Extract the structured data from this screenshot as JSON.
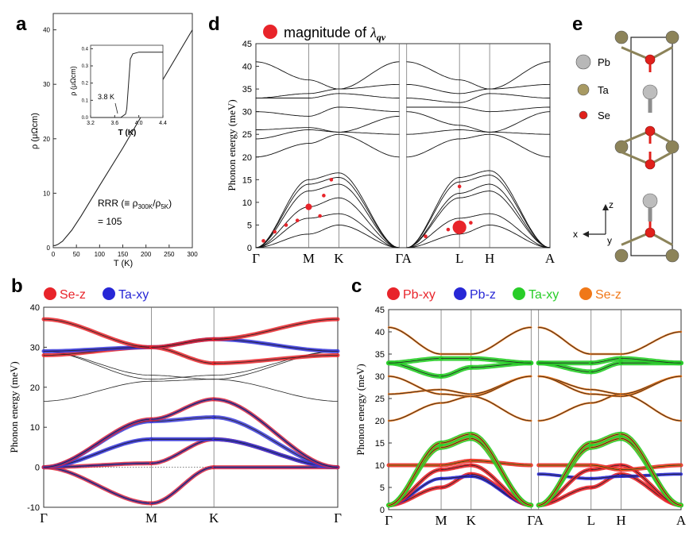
{
  "panels": {
    "a": {
      "letter": "a",
      "chart_data": {
        "type": "line",
        "xlabel": "T (K)",
        "ylabel": "ρ (μΩcm)",
        "xlim": [
          0,
          300
        ],
        "ylim": [
          0,
          43
        ],
        "xticks": [
          "0",
          "50",
          "100",
          "150",
          "200",
          "250",
          "300"
        ],
        "yticks": [
          "0",
          "10",
          "20",
          "30",
          "40"
        ],
        "x": [
          0,
          4,
          10,
          20,
          40,
          60,
          100,
          150,
          200,
          250,
          300
        ],
        "y": [
          0.4,
          0.4,
          0.6,
          1.2,
          3.2,
          5.8,
          11.4,
          18.3,
          25.6,
          32.8,
          40.0
        ],
        "annotation_line1": "RRR (≡ ρ",
        "annotation_sub1": "300K",
        "annotation_mid": "/ρ",
        "annotation_sub2": "5K",
        "annotation_end": ")",
        "annotation_line2": "= 105",
        "inset": {
          "xlabel": "T (K)",
          "ylabel": "ρ (μΩcm)",
          "xlim": [
            3.2,
            4.4
          ],
          "ylim": [
            0,
            0.42
          ],
          "xticks": [
            "3.2",
            "3.6",
            "4.0",
            "4.4"
          ],
          "yticks": [
            "0.0",
            "0.1",
            "0.2",
            "0.3",
            "0.4"
          ],
          "x": [
            3.2,
            3.7,
            3.78,
            3.8,
            3.86,
            3.9,
            4.0,
            4.4
          ],
          "y": [
            0.0,
            0.0,
            0.02,
            0.05,
            0.34,
            0.37,
            0.38,
            0.38
          ],
          "label": "3.8 K"
        }
      }
    },
    "d": {
      "letter": "d",
      "legend": "magnitude of ",
      "legend_symbol": "λ",
      "legend_sub": "qv",
      "chart_data": {
        "type": "line",
        "ylabel": "Phonon energy (meV)",
        "ylim": [
          0,
          45
        ],
        "yticks": [
          "0",
          "5",
          "10",
          "15",
          "20",
          "25",
          "30",
          "35",
          "40",
          "45"
        ],
        "xticks": [
          "Γ",
          "M",
          "K",
          "Γ",
          "A",
          "L",
          "H",
          "A"
        ],
        "xtick_positions": [
          0,
          0.7,
          1.1,
          1.9,
          2.0,
          2.7,
          3.1,
          3.9
        ],
        "segments": [
          [
            0,
            1
          ],
          [
            1,
            2
          ],
          [
            2,
            3
          ],
          [
            4,
            5
          ],
          [
            5,
            6
          ],
          [
            6,
            7
          ]
        ],
        "bands": [
          [
            0,
            3.0,
            5.0,
            0,
            0,
            3.0,
            5.0,
            0
          ],
          [
            0,
            6.5,
            7.5,
            0,
            0,
            6.5,
            7.5,
            0
          ],
          [
            0,
            9.0,
            11.0,
            0,
            0,
            11.0,
            12.5,
            0
          ],
          [
            0,
            12.5,
            14.0,
            0,
            0,
            12.0,
            14.0,
            0
          ],
          [
            0,
            14.0,
            15.5,
            0,
            0,
            14.5,
            16.0,
            0
          ],
          [
            0,
            15.0,
            16.5,
            0,
            0,
            15.5,
            17.0,
            0
          ],
          [
            20,
            23,
            25,
            20,
            20,
            24,
            25,
            20
          ],
          [
            24,
            26,
            25.5,
            25,
            25,
            26,
            25.5,
            25
          ],
          [
            26,
            26.5,
            25.5,
            29,
            30,
            27,
            25.5,
            30
          ],
          [
            30,
            29,
            31,
            30,
            31,
            31,
            30,
            31
          ],
          [
            33,
            33,
            34,
            33,
            33,
            32,
            34,
            33
          ],
          [
            33,
            34,
            35,
            36,
            36,
            34,
            35,
            36
          ],
          [
            41,
            37,
            35,
            41,
            41,
            37,
            35,
            41
          ]
        ],
        "markers": [
          {
            "x": 0.1,
            "y": 1.5,
            "size": 1
          },
          {
            "x": 0.25,
            "y": 3.5,
            "size": 1
          },
          {
            "x": 0.4,
            "y": 5.0,
            "size": 1
          },
          {
            "x": 0.55,
            "y": 6.0,
            "size": 1
          },
          {
            "x": 0.7,
            "y": 9.0,
            "size": 3
          },
          {
            "x": 0.85,
            "y": 7.0,
            "size": 1
          },
          {
            "x": 0.9,
            "y": 11.5,
            "size": 1
          },
          {
            "x": 1.0,
            "y": 15.0,
            "size": 1
          },
          {
            "x": 2.25,
            "y": 2.5,
            "size": 1
          },
          {
            "x": 2.55,
            "y": 4.0,
            "size": 1
          },
          {
            "x": 2.7,
            "y": 4.5,
            "size": 8
          },
          {
            "x": 2.85,
            "y": 5.5,
            "size": 1
          },
          {
            "x": 2.7,
            "y": 13.5,
            "size": 1
          }
        ]
      }
    },
    "e": {
      "letter": "e",
      "legend": [
        {
          "label": "Pb",
          "color": "#b8b8b8"
        },
        {
          "label": "Ta",
          "color": "#a89a63"
        },
        {
          "label": "Se",
          "color": "#e0201b"
        }
      ],
      "axis_z": "z",
      "axis_x": "x",
      "axis_y": "y"
    },
    "b": {
      "letter": "b",
      "legend": [
        {
          "label": "Se-z",
          "color": "#e8242a"
        },
        {
          "label": "Ta-xy",
          "color": "#2727d6"
        }
      ],
      "chart_data": {
        "type": "line",
        "ylabel": "Phonon energy (meV)",
        "ylim": [
          -10,
          40
        ],
        "yticks": [
          "-10",
          "0",
          "10",
          "20",
          "30",
          "40"
        ],
        "xticks": [
          "Γ",
          "M",
          "K",
          "Γ"
        ],
        "xtick_positions": [
          0,
          1.0,
          1.58,
          2.73
        ],
        "bands": [
          [
            0,
            -9,
            0,
            0
          ],
          [
            0,
            1,
            7,
            0
          ],
          [
            0,
            7,
            7,
            0
          ],
          [
            0,
            11.5,
            12.5,
            0
          ],
          [
            0,
            12,
            17,
            0
          ],
          [
            16.5,
            21.5,
            22,
            16.5
          ],
          [
            29,
            22,
            23,
            29
          ],
          [
            29,
            23,
            22,
            29
          ],
          [
            28,
            30,
            26,
            28
          ],
          [
            29,
            30,
            32,
            29
          ],
          [
            37,
            30,
            32,
            37
          ]
        ]
      }
    },
    "c": {
      "letter": "c",
      "legend": [
        {
          "label": "Pb-xy",
          "color": "#e8242a"
        },
        {
          "label": "Pb-z",
          "color": "#2727d6"
        },
        {
          "label": "Ta-xy",
          "color": "#28cd28"
        },
        {
          "label": "Se-z",
          "color": "#f07818"
        }
      ],
      "chart_data": {
        "type": "line",
        "ylabel": "Phonon energy (meV)",
        "ylim": [
          0,
          45
        ],
        "yticks": [
          "0",
          "5",
          "10",
          "15",
          "20",
          "25",
          "30",
          "35",
          "40",
          "45"
        ],
        "xticks": [
          "Γ",
          "M",
          "K",
          "Γ",
          "A",
          "L",
          "H",
          "A"
        ],
        "xtick_positions": [
          0,
          0.7,
          1.1,
          1.9,
          2.0,
          2.7,
          3.1,
          3.9
        ],
        "bands": [
          [
            1,
            5,
            8,
            1,
            1,
            5,
            8,
            1
          ],
          [
            1,
            7,
            7.5,
            1,
            8,
            7,
            7.5,
            8
          ],
          [
            1,
            9,
            10,
            1,
            1,
            9,
            10,
            1
          ],
          [
            10,
            10,
            11,
            10,
            10,
            10,
            9,
            10
          ],
          [
            1,
            14,
            16,
            1,
            1,
            14,
            16,
            1
          ],
          [
            1,
            15,
            17,
            1,
            1,
            15,
            17,
            1
          ],
          [
            20,
            24,
            25.5,
            20,
            20,
            24,
            26,
            20
          ],
          [
            26,
            27,
            26,
            30,
            30,
            27,
            26,
            30
          ],
          [
            30,
            26,
            25.5,
            30,
            30,
            26,
            25.5,
            30
          ],
          [
            33,
            30,
            32,
            33,
            33,
            31,
            33,
            33
          ],
          [
            33,
            34,
            34,
            33,
            33,
            33,
            34,
            33
          ],
          [
            41,
            35,
            35,
            41,
            41,
            35,
            35,
            40
          ]
        ]
      }
    }
  }
}
